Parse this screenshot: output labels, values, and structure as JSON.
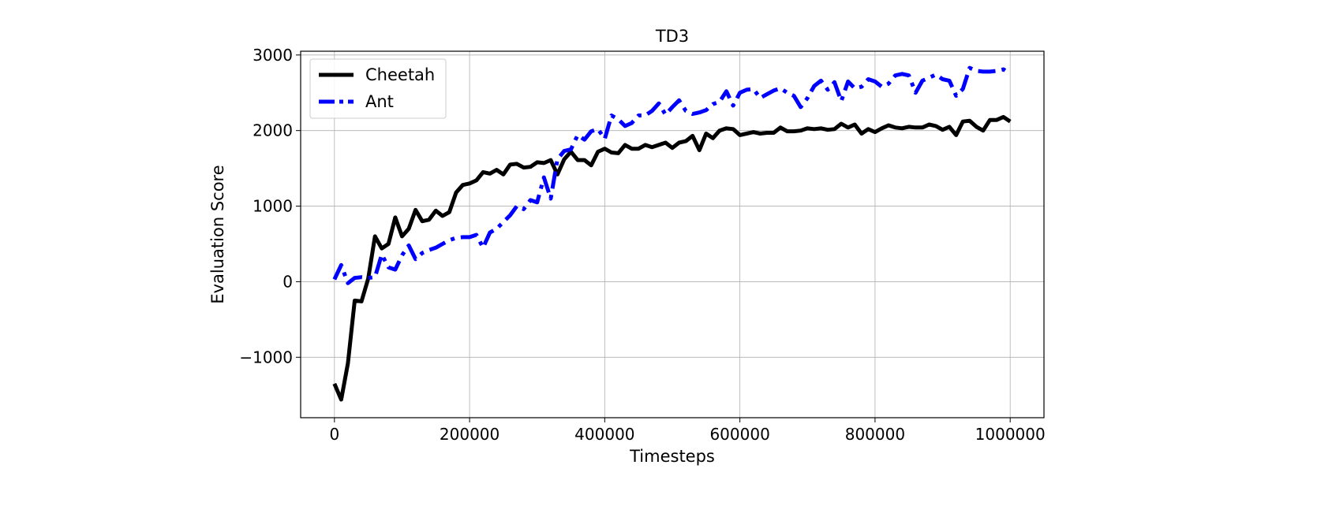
{
  "chart_data": {
    "type": "line",
    "title": "TD3",
    "xlabel": "Timesteps",
    "ylabel": "Evaluation Score",
    "xlim": [
      -50000,
      1050000
    ],
    "ylim": [
      -1800,
      3050
    ],
    "xticks": [
      0,
      200000,
      400000,
      600000,
      800000,
      1000000
    ],
    "xtick_labels": [
      "0",
      "200000",
      "400000",
      "600000",
      "800000",
      "1000000"
    ],
    "yticks": [
      -1000,
      0,
      1000,
      2000,
      3000
    ],
    "ytick_labels": [
      "−1000",
      "0",
      "1000",
      "2000",
      "3000"
    ],
    "grid": true,
    "legend_position": "top-left",
    "x": [
      0,
      10000,
      20000,
      30000,
      40000,
      50000,
      60000,
      70000,
      80000,
      90000,
      100000,
      110000,
      120000,
      130000,
      140000,
      150000,
      160000,
      170000,
      180000,
      190000,
      200000,
      210000,
      220000,
      230000,
      240000,
      250000,
      260000,
      270000,
      280000,
      290000,
      300000,
      310000,
      320000,
      330000,
      340000,
      350000,
      360000,
      370000,
      380000,
      390000,
      400000,
      410000,
      420000,
      430000,
      440000,
      450000,
      460000,
      470000,
      480000,
      490000,
      500000,
      510000,
      520000,
      530000,
      540000,
      550000,
      560000,
      570000,
      580000,
      590000,
      600000,
      610000,
      620000,
      630000,
      640000,
      650000,
      660000,
      670000,
      680000,
      690000,
      700000,
      710000,
      720000,
      730000,
      740000,
      750000,
      760000,
      770000,
      780000,
      790000,
      800000,
      810000,
      820000,
      830000,
      840000,
      850000,
      860000,
      870000,
      880000,
      890000,
      900000,
      910000,
      920000,
      930000,
      940000,
      950000,
      960000,
      970000,
      980000,
      990000,
      1000000
    ],
    "series": [
      {
        "name": "Cheetah",
        "color": "#000000",
        "style": "solid",
        "values": [
          -1350,
          -1560,
          -1080,
          -250,
          -260,
          40,
          600,
          440,
          500,
          850,
          600,
          700,
          950,
          800,
          820,
          940,
          870,
          920,
          1180,
          1280,
          1300,
          1340,
          1450,
          1430,
          1480,
          1420,
          1550,
          1560,
          1510,
          1520,
          1580,
          1570,
          1610,
          1420,
          1620,
          1720,
          1610,
          1610,
          1540,
          1720,
          1760,
          1710,
          1700,
          1810,
          1760,
          1760,
          1810,
          1780,
          1810,
          1840,
          1770,
          1840,
          1860,
          1930,
          1740,
          1960,
          1900,
          2000,
          2030,
          2020,
          1940,
          1960,
          1980,
          1960,
          1970,
          1970,
          2040,
          1990,
          1990,
          2000,
          2030,
          2020,
          2030,
          2010,
          2020,
          2090,
          2040,
          2080,
          1960,
          2020,
          1980,
          2030,
          2070,
          2040,
          2030,
          2050,
          2040,
          2040,
          2080,
          2060,
          2010,
          2050,
          1940,
          2120,
          2130,
          2050,
          2000,
          2140,
          2140,
          2180,
          2120
        ]
      },
      {
        "name": "Ant",
        "color": "#0000ff",
        "style": "dashdot",
        "values": [
          30,
          220,
          -20,
          50,
          60,
          50,
          60,
          360,
          190,
          160,
          350,
          480,
          300,
          380,
          420,
          450,
          500,
          550,
          580,
          590,
          590,
          620,
          450,
          650,
          700,
          790,
          880,
          1000,
          960,
          1080,
          1050,
          1380,
          1100,
          1620,
          1730,
          1750,
          1940,
          1880,
          1990,
          2020,
          1890,
          2200,
          2150,
          2060,
          2100,
          2200,
          2200,
          2260,
          2360,
          2210,
          2310,
          2400,
          2260,
          2220,
          2240,
          2270,
          2350,
          2380,
          2520,
          2330,
          2500,
          2540,
          2550,
          2430,
          2480,
          2530,
          2560,
          2500,
          2460,
          2310,
          2430,
          2590,
          2660,
          2540,
          2640,
          2390,
          2650,
          2560,
          2580,
          2680,
          2650,
          2580,
          2620,
          2730,
          2750,
          2730,
          2500,
          2660,
          2700,
          2740,
          2680,
          2660,
          2460,
          2550,
          2830,
          2790,
          2780,
          2780,
          2790,
          2810,
          2750
        ]
      }
    ]
  }
}
